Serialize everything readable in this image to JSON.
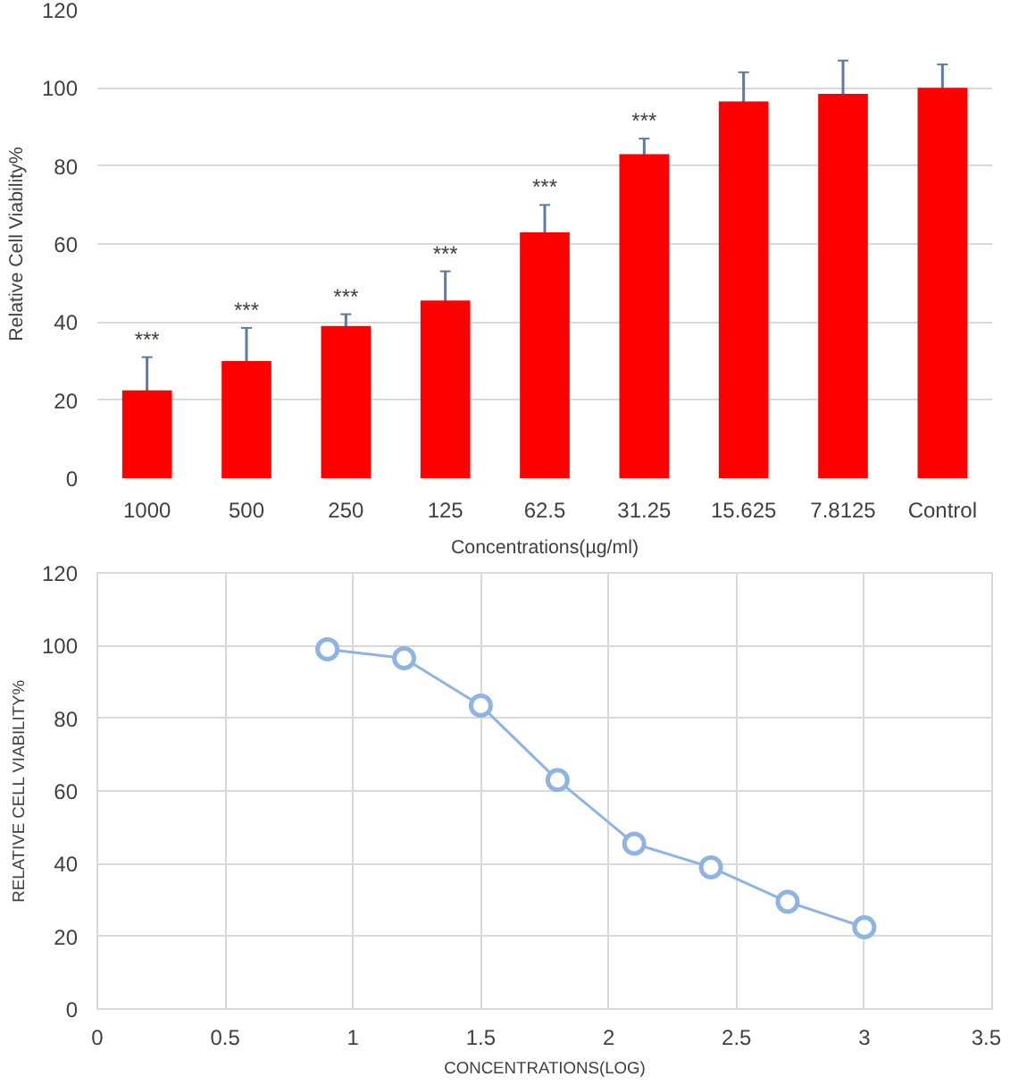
{
  "chart_data": [
    {
      "type": "bar",
      "categories": [
        "1000",
        "500",
        "250",
        "125",
        "62.5",
        "31.25",
        "15.625",
        "7.8125",
        "Control"
      ],
      "xlabel": "Concentrations(µg/ml)",
      "ylabel": "Relative Cell Viability%",
      "values": [
        22.5,
        30,
        39,
        45.5,
        63,
        83,
        96.5,
        98.5,
        100
      ],
      "color": "#ff0000",
      "errors": [
        8.5,
        8.5,
        3,
        7.5,
        7,
        4,
        7.5,
        8.5,
        6
      ],
      "ylim": [
        0,
        120
      ],
      "yticks": [
        0,
        20,
        40,
        60,
        80,
        100,
        120
      ],
      "grid": "y",
      "annotations": [
        "***",
        "***",
        "***",
        "***",
        "***",
        "***"
      ]
    },
    {
      "type": "line",
      "xlabel": "CONCENTRATIONS(LOG)",
      "ylabel": "RELATIVE CELL VIABILITY%",
      "x": [
        0.9,
        1.2,
        1.5,
        1.8,
        2.1,
        2.4,
        2.7,
        3.0
      ],
      "values": [
        99,
        96.5,
        83.5,
        63,
        45.5,
        39,
        29.5,
        22.5
      ],
      "color": "#8db4e2",
      "xlim": [
        0,
        3.5
      ],
      "xticks": [
        0,
        0.5,
        1,
        1.5,
        2,
        2.5,
        3,
        3.5
      ],
      "ylim": [
        0,
        120
      ],
      "yticks": [
        0,
        20,
        40,
        60,
        80,
        100,
        120
      ],
      "grid": true,
      "marker": "circle",
      "line_style": "solid"
    }
  ]
}
